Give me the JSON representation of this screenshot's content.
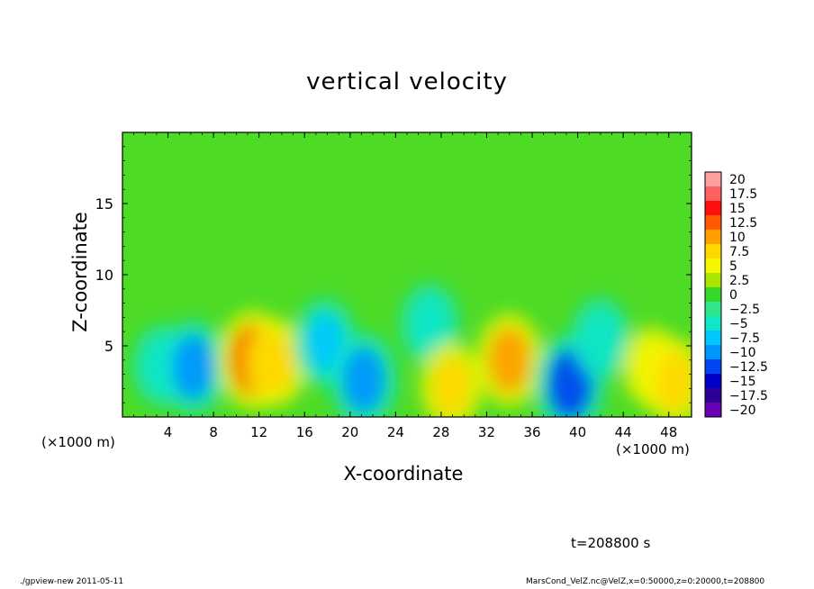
{
  "chart_data": {
    "type": "heatmap",
    "title": "vertical velocity",
    "xlabel": "X-coordinate",
    "ylabel": "Z-coordinate",
    "x_multiplier_label": "(×1000 m)",
    "y_multiplier_label": "(×1000 m)",
    "xlim": [
      0,
      50
    ],
    "ylim": [
      0,
      20
    ],
    "x_ticks": [
      4,
      8,
      12,
      16,
      20,
      24,
      28,
      32,
      36,
      40,
      44,
      48
    ],
    "x_tick_labels": [
      "4",
      "8",
      "12",
      "16",
      "20",
      "24",
      "28",
      "32",
      "36",
      "40",
      "44",
      "48"
    ],
    "y_ticks": [
      5,
      10,
      15
    ],
    "y_tick_labels": [
      "5",
      "10",
      "15"
    ],
    "background_value": 0,
    "features": [
      {
        "x": 3.5,
        "z": 3.6,
        "value": -5
      },
      {
        "x": 6.2,
        "z": 3.5,
        "value": -10
      },
      {
        "x": 11.5,
        "z": 4.0,
        "value": 12.5
      },
      {
        "x": 13.5,
        "z": 3.8,
        "value": 7.5
      },
      {
        "x": 17.8,
        "z": 5.2,
        "value": -7.5
      },
      {
        "x": 21.2,
        "z": 2.6,
        "value": -10
      },
      {
        "x": 27.0,
        "z": 6.5,
        "value": -5
      },
      {
        "x": 28.9,
        "z": 2.2,
        "value": 7.5
      },
      {
        "x": 34.0,
        "z": 4.0,
        "value": 10
      },
      {
        "x": 39.3,
        "z": 2.3,
        "value": -12.5
      },
      {
        "x": 42.0,
        "z": 5.5,
        "value": -5
      },
      {
        "x": 46.5,
        "z": 3.5,
        "value": 5
      },
      {
        "x": 48.5,
        "z": 2.5,
        "value": 7.5
      }
    ],
    "colorbar": {
      "labels": [
        "20",
        "17.5",
        "15",
        "12.5",
        "10",
        "7.5",
        "5",
        "2.5",
        "0",
        "-2.5",
        "-5",
        "-7.5",
        "-10",
        "-12.5",
        "-15",
        "-17.5",
        "-20"
      ],
      "colors": [
        "#ffa0a0",
        "#ff6060",
        "#ff1010",
        "#ff5a00",
        "#ffa000",
        "#ffd800",
        "#f5f500",
        "#a8e600",
        "#33d829",
        "#30e68c",
        "#10e6c8",
        "#00c8ff",
        "#0096ff",
        "#0046f0",
        "#0000c8",
        "#2c0096",
        "#6a00b4"
      ]
    }
  },
  "annotations": {
    "time": "t=208800 s",
    "footer_left": "./gpview-new  2011-05-11",
    "footer_right": "MarsCond_VelZ.nc@VelZ,x=0:50000,z=0:20000,t=208800"
  },
  "colors": {
    "background": "#ffffff",
    "field_neutral": "#4ddb26"
  }
}
